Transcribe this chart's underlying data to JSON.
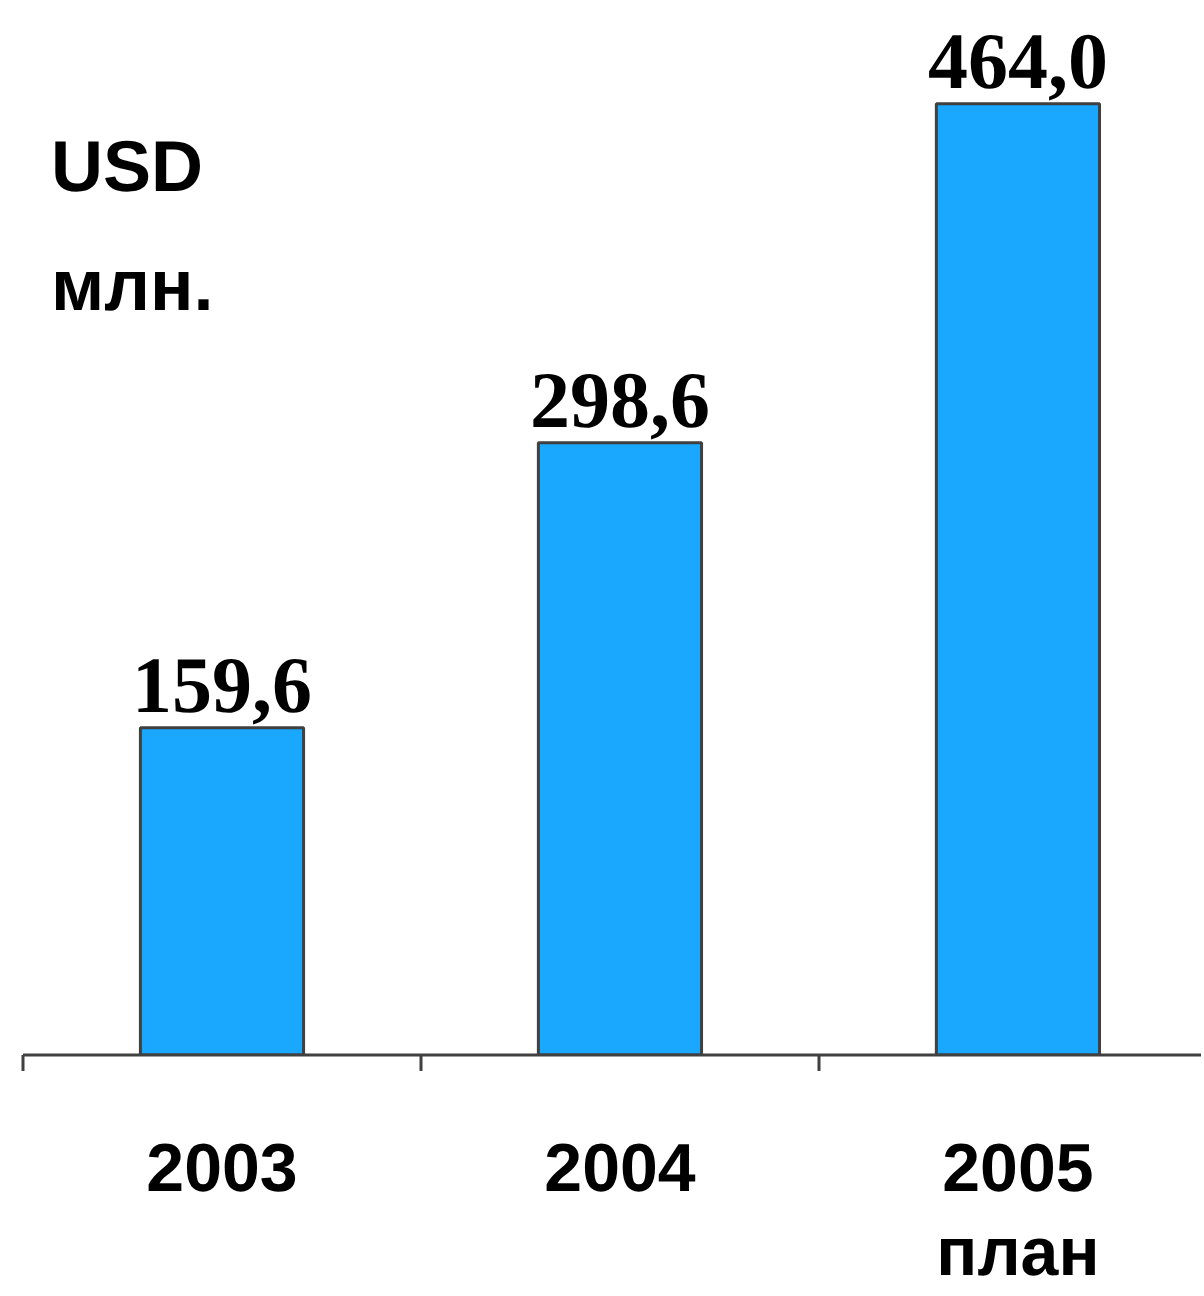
{
  "chart_data": {
    "type": "bar",
    "ylabel": "USD млн.",
    "categories": [
      "2003",
      "2004",
      "2005 план"
    ],
    "values": [
      159.6,
      298.6,
      464.0
    ],
    "value_labels": [
      "159,6",
      "298,6",
      "464,0"
    ],
    "color": "#1aa8ff"
  }
}
